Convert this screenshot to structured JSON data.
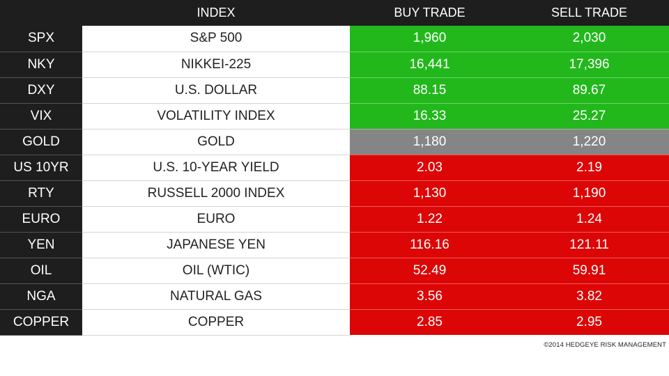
{
  "header": {
    "symbol": "",
    "index": "INDEX",
    "buy": "BUY TRADE",
    "sell": "SELL TRADE"
  },
  "colors": {
    "bullish": "#22b81c",
    "neutral": "#858585",
    "bearish": "#dd0606"
  },
  "rows": [
    {
      "symbol": "SPX",
      "name": "S&P 500",
      "buy": "1,960",
      "sell": "2,030",
      "status": "bullish"
    },
    {
      "symbol": "NKY",
      "name": "NIKKEI-225",
      "buy": "16,441",
      "sell": "17,396",
      "status": "bullish"
    },
    {
      "symbol": "DXY",
      "name": "U.S. DOLLAR",
      "buy": "88.15",
      "sell": "89.67",
      "status": "bullish"
    },
    {
      "symbol": "VIX",
      "name": "VOLATILITY INDEX",
      "buy": "16.33",
      "sell": "25.27",
      "status": "bullish"
    },
    {
      "symbol": "GOLD",
      "name": "GOLD",
      "buy": "1,180",
      "sell": "1,220",
      "status": "neutral"
    },
    {
      "symbol": "US 10YR",
      "name": "U.S. 10-YEAR YIELD",
      "buy": "2.03",
      "sell": "2.19",
      "status": "bearish"
    },
    {
      "symbol": "RTY",
      "name": "RUSSELL 2000 INDEX",
      "buy": "1,130",
      "sell": "1,190",
      "status": "bearish"
    },
    {
      "symbol": "EURO",
      "name": "EURO",
      "buy": "1.22",
      "sell": "1.24",
      "status": "bearish"
    },
    {
      "symbol": "YEN",
      "name": "JAPANESE YEN",
      "buy": "116.16",
      "sell": "121.11",
      "status": "bearish"
    },
    {
      "symbol": "OIL",
      "name": "OIL (WTIC)",
      "buy": "52.49",
      "sell": "59.91",
      "status": "bearish"
    },
    {
      "symbol": "NGA",
      "name": "NATURAL GAS",
      "buy": "3.56",
      "sell": "3.82",
      "status": "bearish"
    },
    {
      "symbol": "COPPER",
      "name": "COPPER",
      "buy": "2.85",
      "sell": "2.95",
      "status": "bearish"
    }
  ],
  "footer": {
    "copyright": "©2014 HEDGEYE RISK MANAGEMENT"
  }
}
